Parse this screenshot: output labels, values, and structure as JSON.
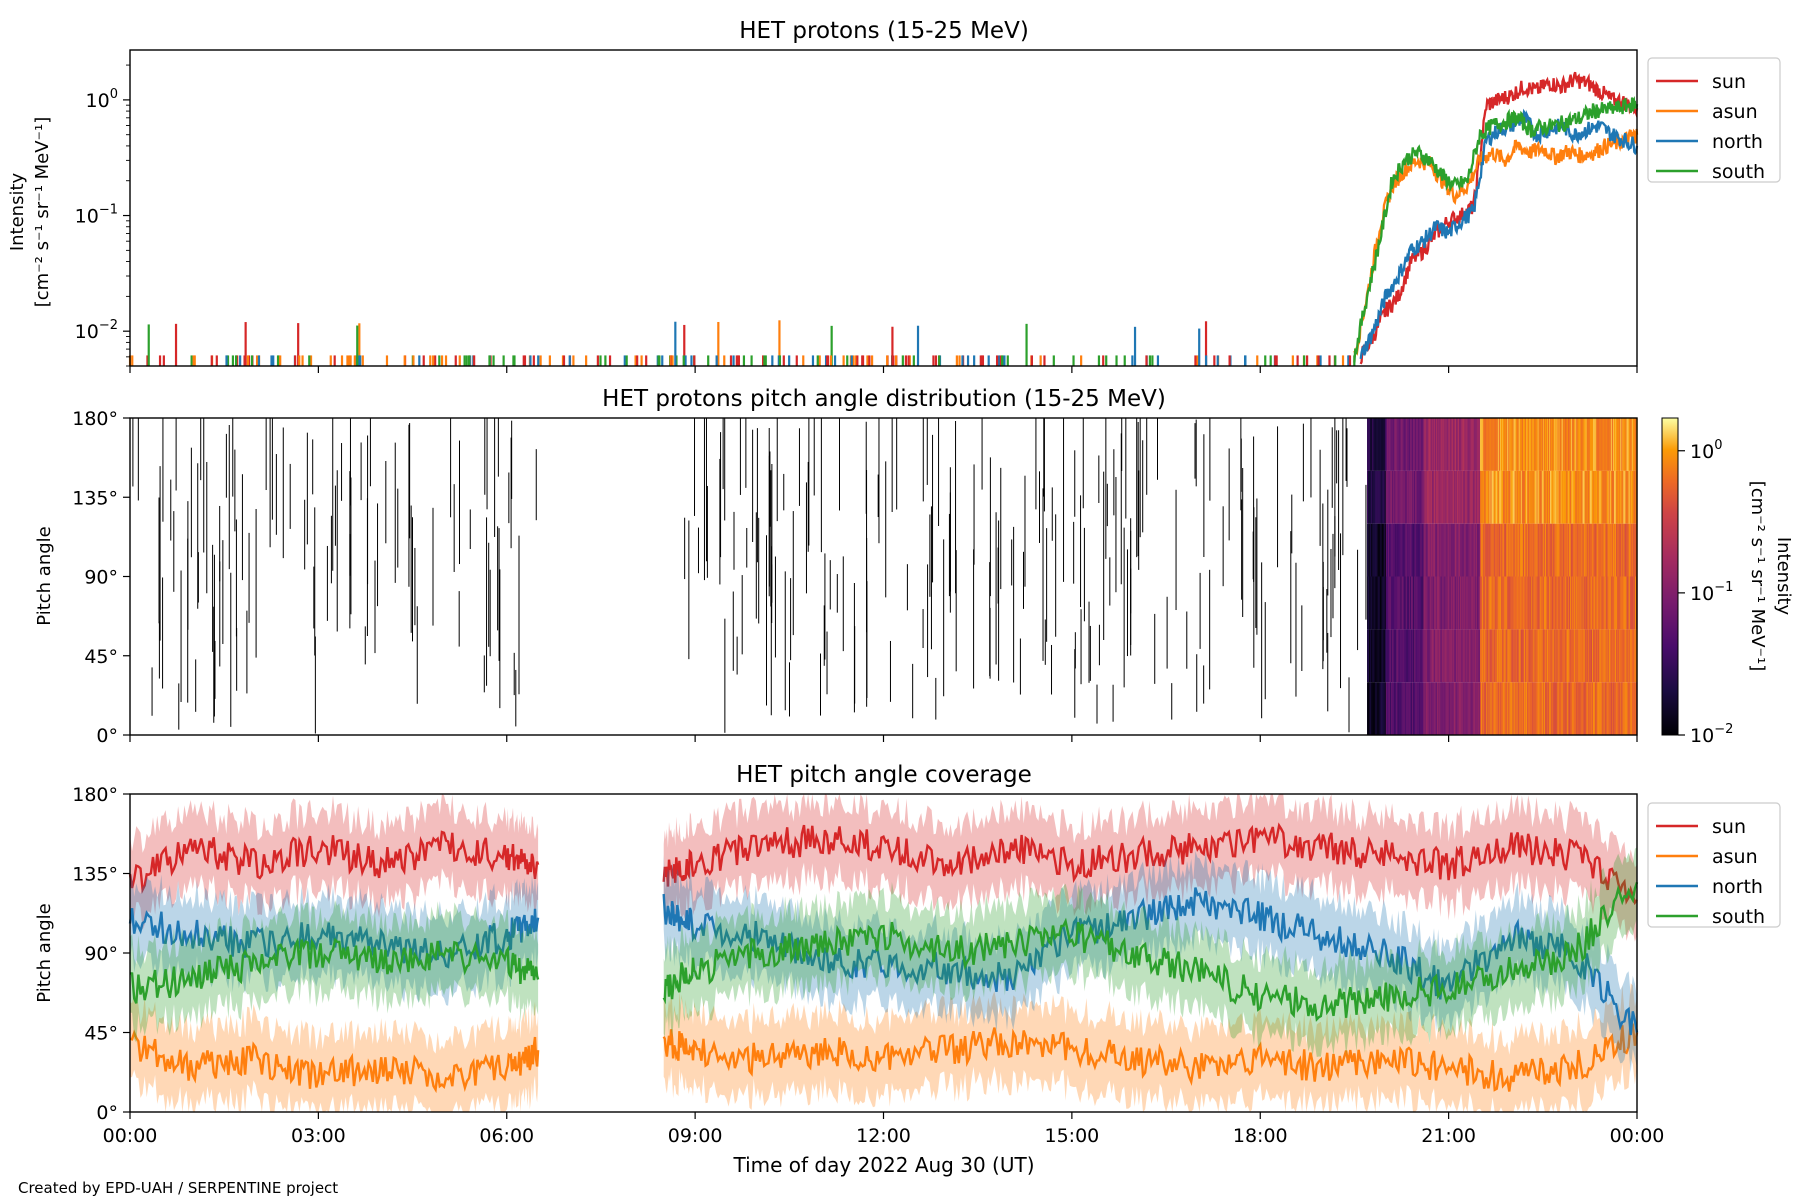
{
  "footer": "Created by EPD-UAH / SERPENTINE project",
  "xlabel": "Time of day 2022 Aug 30 (UT)",
  "x_ticks": [
    "00:00",
    "03:00",
    "06:00",
    "09:00",
    "12:00",
    "15:00",
    "18:00",
    "21:00",
    "00:00"
  ],
  "colors": {
    "sun": "#d62728",
    "asun": "#ff7f0e",
    "north": "#1f77b4",
    "south": "#2ca02c"
  },
  "chart_data": [
    {
      "type": "line",
      "title": "HET protons (15-25 MeV)",
      "ylabel_line1": "Intensity",
      "ylabel_line2": "[cm⁻² s⁻¹ sr⁻¹ MeV⁻¹]",
      "yscale": "log",
      "ylim": [
        0.005,
        2.7
      ],
      "y_ticks": [
        {
          "value": 0.01,
          "base": "10",
          "exp": "−2"
        },
        {
          "value": 0.1,
          "base": "10",
          "exp": "−1"
        },
        {
          "value": 1,
          "base": "10",
          "exp": "0"
        }
      ],
      "xlim_hours": [
        0,
        24
      ],
      "legend": {
        "position": "right",
        "entries": [
          "sun",
          "asun",
          "north",
          "south"
        ]
      },
      "series": [
        {
          "name": "sun",
          "points": [
            [
              19.6,
              0.006
            ],
            [
              19.8,
              0.009
            ],
            [
              20.0,
              0.015
            ],
            [
              20.2,
              0.02
            ],
            [
              20.4,
              0.04
            ],
            [
              20.6,
              0.05
            ],
            [
              20.8,
              0.07
            ],
            [
              21.0,
              0.09
            ],
            [
              21.2,
              0.1
            ],
            [
              21.4,
              0.12
            ],
            [
              21.6,
              0.9
            ],
            [
              21.8,
              1.0
            ],
            [
              22.0,
              1.1
            ],
            [
              22.2,
              1.3
            ],
            [
              22.4,
              1.2
            ],
            [
              22.6,
              1.4
            ],
            [
              22.8,
              1.3
            ],
            [
              23.0,
              1.5
            ],
            [
              23.2,
              1.4
            ],
            [
              23.4,
              1.2
            ],
            [
              23.6,
              1.0
            ],
            [
              23.8,
              0.95
            ],
            [
              24.0,
              0.85
            ]
          ]
        },
        {
          "name": "asun",
          "points": [
            [
              19.5,
              0.006
            ],
            [
              19.7,
              0.02
            ],
            [
              19.9,
              0.08
            ],
            [
              20.1,
              0.18
            ],
            [
              20.3,
              0.25
            ],
            [
              20.5,
              0.3
            ],
            [
              20.7,
              0.28
            ],
            [
              20.9,
              0.2
            ],
            [
              21.1,
              0.15
            ],
            [
              21.3,
              0.18
            ],
            [
              21.5,
              0.3
            ],
            [
              21.7,
              0.35
            ],
            [
              21.9,
              0.3
            ],
            [
              22.1,
              0.4
            ],
            [
              22.3,
              0.35
            ],
            [
              22.5,
              0.38
            ],
            [
              22.7,
              0.32
            ],
            [
              22.9,
              0.36
            ],
            [
              23.1,
              0.33
            ],
            [
              23.3,
              0.35
            ],
            [
              23.5,
              0.4
            ],
            [
              23.7,
              0.42
            ],
            [
              23.9,
              0.48
            ],
            [
              24.0,
              0.5
            ]
          ]
        },
        {
          "name": "north",
          "points": [
            [
              19.6,
              0.006
            ],
            [
              19.8,
              0.01
            ],
            [
              20.0,
              0.02
            ],
            [
              20.2,
              0.03
            ],
            [
              20.4,
              0.05
            ],
            [
              20.6,
              0.06
            ],
            [
              20.8,
              0.08
            ],
            [
              21.0,
              0.07
            ],
            [
              21.2,
              0.09
            ],
            [
              21.4,
              0.11
            ],
            [
              21.6,
              0.45
            ],
            [
              21.8,
              0.55
            ],
            [
              22.0,
              0.6
            ],
            [
              22.2,
              0.7
            ],
            [
              22.4,
              0.5
            ],
            [
              22.6,
              0.55
            ],
            [
              22.8,
              0.6
            ],
            [
              23.0,
              0.5
            ],
            [
              23.2,
              0.55
            ],
            [
              23.4,
              0.6
            ],
            [
              23.6,
              0.5
            ],
            [
              23.8,
              0.45
            ],
            [
              24.0,
              0.4
            ]
          ]
        },
        {
          "name": "south",
          "points": [
            [
              19.5,
              0.006
            ],
            [
              19.7,
              0.02
            ],
            [
              19.9,
              0.06
            ],
            [
              20.1,
              0.2
            ],
            [
              20.3,
              0.3
            ],
            [
              20.5,
              0.35
            ],
            [
              20.7,
              0.3
            ],
            [
              20.9,
              0.22
            ],
            [
              21.1,
              0.18
            ],
            [
              21.3,
              0.2
            ],
            [
              21.5,
              0.5
            ],
            [
              21.7,
              0.6
            ],
            [
              21.9,
              0.65
            ],
            [
              22.1,
              0.7
            ],
            [
              22.3,
              0.55
            ],
            [
              22.5,
              0.58
            ],
            [
              22.7,
              0.6
            ],
            [
              22.9,
              0.65
            ],
            [
              23.1,
              0.7
            ],
            [
              23.3,
              0.8
            ],
            [
              23.5,
              0.82
            ],
            [
              23.7,
              0.85
            ],
            [
              23.9,
              0.9
            ],
            [
              24.0,
              0.92
            ]
          ]
        }
      ]
    },
    {
      "type": "heatmap",
      "title": "HET protons pitch angle distribution (15-25 MeV)",
      "ylabel": "Pitch angle",
      "ylim": [
        0,
        180
      ],
      "y_ticks": [
        "0°",
        "45°",
        "90°",
        "135°",
        "180°"
      ],
      "xlim_hours": [
        0,
        24
      ],
      "colorbar": {
        "label_line1": "Intensity",
        "label_line2": "[cm⁻² s⁻¹ sr⁻¹ MeV⁻¹]",
        "scale": "log",
        "range": [
          0.01,
          1.7
        ],
        "ticks": [
          {
            "value": 0.01,
            "base": "10",
            "exp": "−2"
          },
          {
            "value": 0.1,
            "base": "10",
            "exp": "−1"
          },
          {
            "value": 1,
            "base": "10",
            "exp": "0"
          }
        ],
        "colormap": "inferno"
      },
      "segments": [
        {
          "x_start": 19.7,
          "x_end": 20.0,
          "value": 0.015
        },
        {
          "x_start": 20.0,
          "x_end": 20.6,
          "value": 0.05
        },
        {
          "x_start": 20.6,
          "x_end": 21.5,
          "value": 0.1
        },
        {
          "x_start": 21.5,
          "x_end": 24.0,
          "value": 0.6
        }
      ]
    },
    {
      "type": "line",
      "title": "HET pitch angle coverage",
      "ylabel": "Pitch angle",
      "ylim": [
        0,
        180
      ],
      "y_ticks": [
        "0°",
        "45°",
        "90°",
        "135°",
        "180°"
      ],
      "xlim_hours": [
        0,
        24
      ],
      "data_gaps_hours": [
        [
          6.5,
          8.5
        ]
      ],
      "legend": {
        "position": "right",
        "entries": [
          "sun",
          "asun",
          "north",
          "south"
        ]
      },
      "series": [
        {
          "name": "sun",
          "points": [
            [
              0,
              130
            ],
            [
              1,
              150
            ],
            [
              2,
              140
            ],
            [
              3,
              150
            ],
            [
              4,
              140
            ],
            [
              5,
              150
            ],
            [
              6,
              145
            ],
            [
              6.5,
              140
            ],
            [
              8.5,
              135
            ],
            [
              9,
              140
            ],
            [
              10,
              150
            ],
            [
              11,
              155
            ],
            [
              12,
              150
            ],
            [
              13,
              140
            ],
            [
              14,
              150
            ],
            [
              15,
              140
            ],
            [
              16,
              145
            ],
            [
              17,
              150
            ],
            [
              18,
              155
            ],
            [
              19,
              150
            ],
            [
              20,
              145
            ],
            [
              21,
              140
            ],
            [
              22,
              150
            ],
            [
              23,
              145
            ],
            [
              24,
              120
            ]
          ]
        },
        {
          "name": "asun",
          "points": [
            [
              0,
              40
            ],
            [
              1,
              25
            ],
            [
              2,
              30
            ],
            [
              3,
              20
            ],
            [
              4,
              25
            ],
            [
              5,
              20
            ],
            [
              6,
              25
            ],
            [
              6.5,
              35
            ],
            [
              8.5,
              40
            ],
            [
              9,
              35
            ],
            [
              10,
              30
            ],
            [
              11,
              35
            ],
            [
              12,
              30
            ],
            [
              13,
              35
            ],
            [
              14,
              40
            ],
            [
              15,
              35
            ],
            [
              16,
              30
            ],
            [
              17,
              25
            ],
            [
              18,
              30
            ],
            [
              19,
              25
            ],
            [
              20,
              30
            ],
            [
              21,
              25
            ],
            [
              22,
              20
            ],
            [
              23,
              25
            ],
            [
              24,
              45
            ]
          ]
        },
        {
          "name": "north",
          "points": [
            [
              0,
              110
            ],
            [
              1,
              100
            ],
            [
              2,
              95
            ],
            [
              3,
              100
            ],
            [
              4,
              95
            ],
            [
              5,
              90
            ],
            [
              6,
              100
            ],
            [
              6.5,
              110
            ],
            [
              8.5,
              115
            ],
            [
              9,
              105
            ],
            [
              10,
              100
            ],
            [
              11,
              85
            ],
            [
              12,
              85
            ],
            [
              13,
              80
            ],
            [
              14,
              75
            ],
            [
              15,
              100
            ],
            [
              16,
              110
            ],
            [
              17,
              120
            ],
            [
              18,
              110
            ],
            [
              19,
              100
            ],
            [
              20,
              90
            ],
            [
              21,
              70
            ],
            [
              22,
              100
            ],
            [
              23,
              90
            ],
            [
              24,
              45
            ]
          ]
        },
        {
          "name": "south",
          "points": [
            [
              0,
              70
            ],
            [
              1,
              75
            ],
            [
              2,
              85
            ],
            [
              3,
              90
            ],
            [
              4,
              85
            ],
            [
              5,
              90
            ],
            [
              6,
              85
            ],
            [
              6.5,
              75
            ],
            [
              8.5,
              70
            ],
            [
              9,
              80
            ],
            [
              10,
              90
            ],
            [
              11,
              95
            ],
            [
              12,
              100
            ],
            [
              13,
              90
            ],
            [
              14,
              95
            ],
            [
              15,
              100
            ],
            [
              16,
              90
            ],
            [
              17,
              80
            ],
            [
              18,
              65
            ],
            [
              19,
              60
            ],
            [
              20,
              65
            ],
            [
              21,
              70
            ],
            [
              22,
              80
            ],
            [
              23,
              90
            ],
            [
              24,
              130
            ]
          ]
        }
      ]
    }
  ]
}
